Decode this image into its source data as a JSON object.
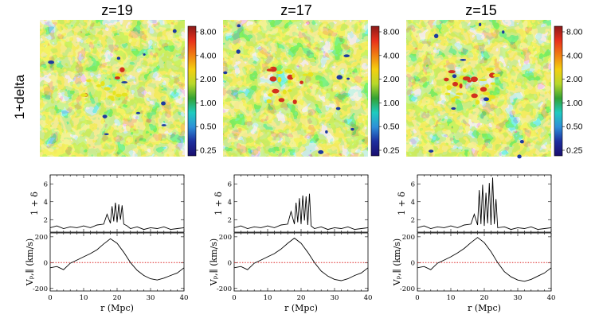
{
  "figure": {
    "row_label": "1+delta",
    "colorbar_ticks": [
      "8.00",
      "4.00",
      "2.00",
      "1.00",
      "0.50",
      "0.25"
    ],
    "colorbar_colors": [
      "#8b1a1a",
      "#e8301c",
      "#f07e12",
      "#f4cf10",
      "#b8d82a",
      "#33a233",
      "#1fcbbf",
      "#2d8fd8",
      "#1d2e9e",
      "#1a0e6e"
    ],
    "map_colors": {
      "cyan": "#35d0c6",
      "green": "#2e9d3a",
      "yellow": "#e5e31f",
      "light_green": "#9fd34a",
      "blue": "#2a64c8",
      "red": "#d2301e"
    },
    "panels": [
      {
        "title": "z=19"
      },
      {
        "title": "z=17"
      },
      {
        "title": "z=15"
      }
    ]
  },
  "chart_data": [
    {
      "type": "line",
      "title": "z=19",
      "xlabel": "r (Mpc)",
      "xlim": [
        0,
        40
      ],
      "x_ticks": [
        "0",
        "10",
        "20",
        "30",
        "40"
      ],
      "top": {
        "ylabel": "1 + δ",
        "ylim": [
          0.6,
          7
        ],
        "y_ticks": [
          "2",
          "4",
          "6"
        ],
        "series": [
          {
            "x": [
              0,
              2,
              4,
              6,
              8,
              10,
              12,
              14,
              16,
              17,
              18,
              18.5,
              19,
              19.5,
              20,
              20.5,
              21,
              21.5,
              22,
              23,
              24,
              26,
              28,
              30,
              32,
              34,
              36,
              38,
              40
            ],
            "values": [
              1.1,
              1.3,
              1.0,
              1.2,
              1.1,
              1.3,
              1.1,
              1.4,
              1.5,
              2.6,
              1.6,
              3.5,
              1.8,
              3.9,
              1.7,
              3.7,
              2.0,
              3.6,
              1.5,
              1.3,
              1.0,
              1.2,
              0.9,
              1.1,
              1.0,
              1.2,
              0.9,
              1.0,
              1.1
            ]
          }
        ]
      },
      "bottom": {
        "ylabel": "V_{p,||} (km/s)",
        "ylim": [
          -220,
          230
        ],
        "y_ticks": [
          "200",
          "0",
          "-200"
        ],
        "reference_line": 0,
        "series": [
          {
            "x": [
              0,
              2,
              4,
              6,
              8,
              10,
              12,
              14,
              16,
              18,
              20,
              22,
              24,
              26,
              28,
              30,
              32,
              34,
              36,
              38,
              40
            ],
            "values": [
              -40,
              -30,
              -55,
              -5,
              20,
              45,
              70,
              100,
              145,
              185,
              150,
              80,
              0,
              -60,
              -100,
              -125,
              -135,
              -120,
              -100,
              -80,
              -40
            ]
          }
        ]
      }
    },
    {
      "type": "line",
      "title": "z=17",
      "xlabel": "r (Mpc)",
      "xlim": [
        0,
        40
      ],
      "x_ticks": [
        "0",
        "10",
        "20",
        "30",
        "40"
      ],
      "top": {
        "ylabel": "1 + δ",
        "ylim": [
          0.6,
          7
        ],
        "y_ticks": [
          "2",
          "4",
          "6"
        ],
        "series": [
          {
            "x": [
              0,
              2,
              4,
              6,
              8,
              10,
              12,
              14,
              16,
              17,
              18,
              18.5,
              19,
              19.5,
              20,
              20.5,
              21,
              21.5,
              22,
              22.5,
              23,
              24,
              26,
              28,
              30,
              32,
              34,
              36,
              38,
              40
            ],
            "values": [
              1.1,
              1.3,
              1.0,
              1.2,
              1.1,
              1.3,
              1.1,
              1.4,
              1.5,
              2.9,
              1.5,
              3.9,
              1.7,
              4.4,
              1.5,
              4.7,
              1.9,
              4.6,
              1.4,
              4.9,
              1.3,
              1.0,
              1.2,
              0.9,
              1.1,
              1.0,
              1.2,
              0.9,
              1.0,
              1.1
            ]
          }
        ]
      },
      "bottom": {
        "ylabel": "V_{p,||} (km/s)",
        "ylim": [
          -220,
          230
        ],
        "y_ticks": [
          "200",
          "0",
          "-200"
        ],
        "reference_line": 0,
        "series": [
          {
            "x": [
              0,
              2,
              4,
              6,
              8,
              10,
              12,
              14,
              16,
              18,
              20,
              22,
              24,
              26,
              28,
              30,
              32,
              34,
              36,
              38,
              40
            ],
            "values": [
              -40,
              -30,
              -55,
              -5,
              20,
              45,
              70,
              105,
              150,
              190,
              150,
              80,
              0,
              -65,
              -105,
              -130,
              -140,
              -125,
              -100,
              -80,
              -40
            ]
          }
        ]
      }
    },
    {
      "type": "line",
      "title": "z=15",
      "xlabel": "r (Mpc)",
      "xlim": [
        0,
        40
      ],
      "x_ticks": [
        "0",
        "10",
        "20",
        "30",
        "40"
      ],
      "top": {
        "ylabel": "1 + δ",
        "ylim": [
          0.6,
          7
        ],
        "y_ticks": [
          "2",
          "4",
          "6"
        ],
        "series": [
          {
            "x": [
              0,
              2,
              4,
              6,
              8,
              10,
              12,
              14,
              16,
              17,
              18,
              18.5,
              19,
              19.5,
              20,
              20.5,
              21,
              21.5,
              22,
              22.5,
              23,
              23.5,
              24,
              26,
              28,
              30,
              32,
              34,
              36,
              38,
              40
            ],
            "values": [
              1.1,
              1.3,
              1.0,
              1.2,
              1.1,
              1.3,
              1.1,
              1.4,
              1.5,
              2.6,
              1.4,
              5.3,
              1.5,
              5.9,
              1.3,
              5.0,
              1.6,
              6.1,
              1.4,
              6.7,
              1.5,
              4.3,
              1.1,
              1.2,
              0.9,
              1.1,
              1.0,
              1.2,
              0.9,
              1.0,
              1.1
            ]
          }
        ]
      },
      "bottom": {
        "ylabel": "V_{p,||} (km/s)",
        "ylim": [
          -220,
          230
        ],
        "y_ticks": [
          "200",
          "0",
          "-200"
        ],
        "reference_line": 0,
        "series": [
          {
            "x": [
              0,
              2,
              4,
              6,
              8,
              10,
              12,
              14,
              16,
              18,
              20,
              22,
              24,
              26,
              28,
              30,
              32,
              34,
              36,
              38,
              40
            ],
            "values": [
              -40,
              -30,
              -55,
              -5,
              20,
              45,
              75,
              110,
              155,
              195,
              155,
              85,
              0,
              -70,
              -110,
              -135,
              -145,
              -130,
              -105,
              -80,
              -40
            ]
          }
        ]
      }
    }
  ]
}
